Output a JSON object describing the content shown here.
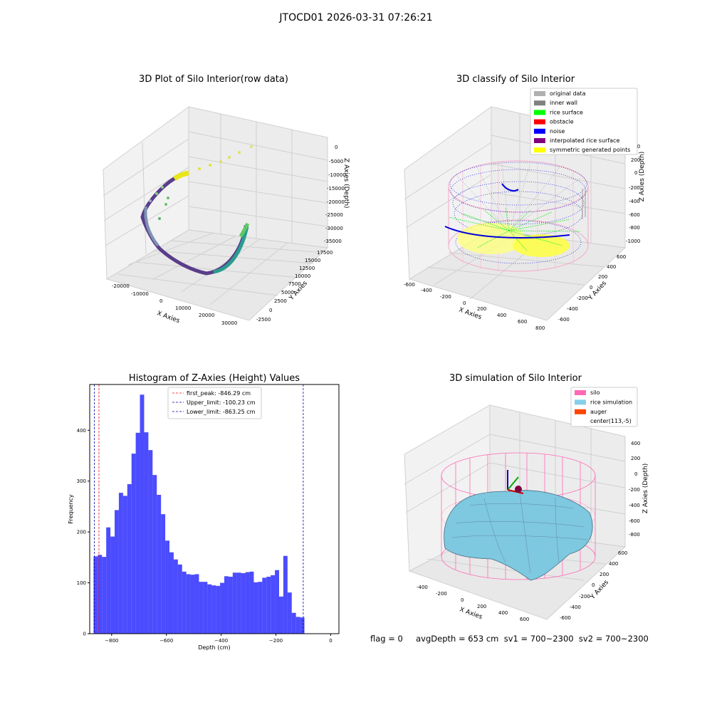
{
  "suptitle": "JTOCD01 2026-03-31 07:26:21",
  "footer": "flag = 0     avgDepth = 653 cm  sv1 = 700~2300  sv2 = 700~2300",
  "panels": {
    "raw": {
      "title": "3D Plot of Silo Interior(row data)",
      "xlabel": "X Axies",
      "ylabel": "Y Axies",
      "zlabel": "Z Axies (Depth)",
      "xticks": [
        "-20000",
        "-10000",
        "0",
        "10000",
        "20000",
        "30000"
      ],
      "yticks": [
        "-2500",
        "0",
        "2500",
        "5000",
        "7500",
        "10000",
        "12500",
        "15000",
        "17500"
      ],
      "zticks": [
        "0",
        "-5000",
        "-10000",
        "-15000",
        "-20000",
        "-25000",
        "-30000",
        "-35000"
      ]
    },
    "classify": {
      "title": "3D classify of Silo Interior",
      "xlabel": "X Axies",
      "ylabel": "Y Axies",
      "zlabel": "Z Axies (Depth)",
      "xticks": [
        "-600",
        "-400",
        "-200",
        "0",
        "200",
        "400",
        "600",
        "800"
      ],
      "yticks": [
        "-600",
        "-400",
        "-200",
        "0",
        "200",
        "400",
        "600"
      ],
      "zticks": [
        "200",
        "0",
        "-200",
        "-400",
        "-600",
        "-800",
        "-1000"
      ],
      "zextra": "200",
      "legend": [
        {
          "label": "original data",
          "color": "#b0b0b0"
        },
        {
          "label": "inner wall",
          "color": "#808080"
        },
        {
          "label": "rice surface",
          "color": "#00ff00"
        },
        {
          "label": "obstacle",
          "color": "#ff0000"
        },
        {
          "label": "noise",
          "color": "#0000ff"
        },
        {
          "label": "interpolated rice surface",
          "color": "#800080"
        },
        {
          "label": "symmetric generated points",
          "color": "#ffff00"
        }
      ]
    },
    "sim": {
      "title": "3D simulation of Silo Interior",
      "xlabel": "X Axies",
      "ylabel": "Y Axies",
      "zlabel": "Z Axies (Depth)",
      "xticks": [
        "-400",
        "-200",
        "0",
        "200",
        "400",
        "600"
      ],
      "yticks": [
        "-600",
        "-400",
        "-200",
        "0",
        "200",
        "400",
        "600"
      ],
      "zticks": [
        "400",
        "200",
        "0",
        "-200",
        "-400",
        "-600",
        "-800"
      ],
      "legend": [
        {
          "label": "silo",
          "color": "#ff69b4"
        },
        {
          "label": "rice simulation",
          "color": "#87ceeb"
        },
        {
          "label": "auger",
          "color": "#ff4500"
        },
        {
          "label": "center(113,-5)",
          "color": "#ffffff"
        }
      ]
    }
  },
  "chart_data": {
    "type": "bar",
    "title": "Histogram of Z-Axies (Height) Values",
    "xlabel": "Depth (cm)",
    "ylabel": "Frequency",
    "xlim": [
      -880,
      30
    ],
    "ylim": [
      0,
      490
    ],
    "xticks": [
      -800,
      -600,
      -400,
      -200,
      0
    ],
    "yticks": [
      0,
      100,
      200,
      300,
      400
    ],
    "bin_start": -866,
    "bin_width": 15.4,
    "values": [
      152,
      155,
      151,
      209,
      191,
      243,
      277,
      271,
      294,
      354,
      395,
      470,
      396,
      361,
      312,
      273,
      235,
      183,
      160,
      146,
      136,
      122,
      117,
      116,
      117,
      102,
      102,
      97,
      95,
      94,
      100,
      113,
      112,
      120,
      120,
      119,
      121,
      122,
      101,
      102,
      110,
      112,
      115,
      125,
      73,
      153,
      81,
      41,
      33,
      32
    ],
    "color": "#0000ff",
    "lines": [
      {
        "label": "first_peak: -846.29 cm",
        "x": -846.29,
        "color": "#ff0000"
      },
      {
        "label": "Upper_limit: -100.23 cm",
        "x": -100.23,
        "color": "#0000aa"
      },
      {
        "label": "Lower_limit: -863.25 cm",
        "x": -863.25,
        "color": "#0000aa"
      }
    ]
  }
}
